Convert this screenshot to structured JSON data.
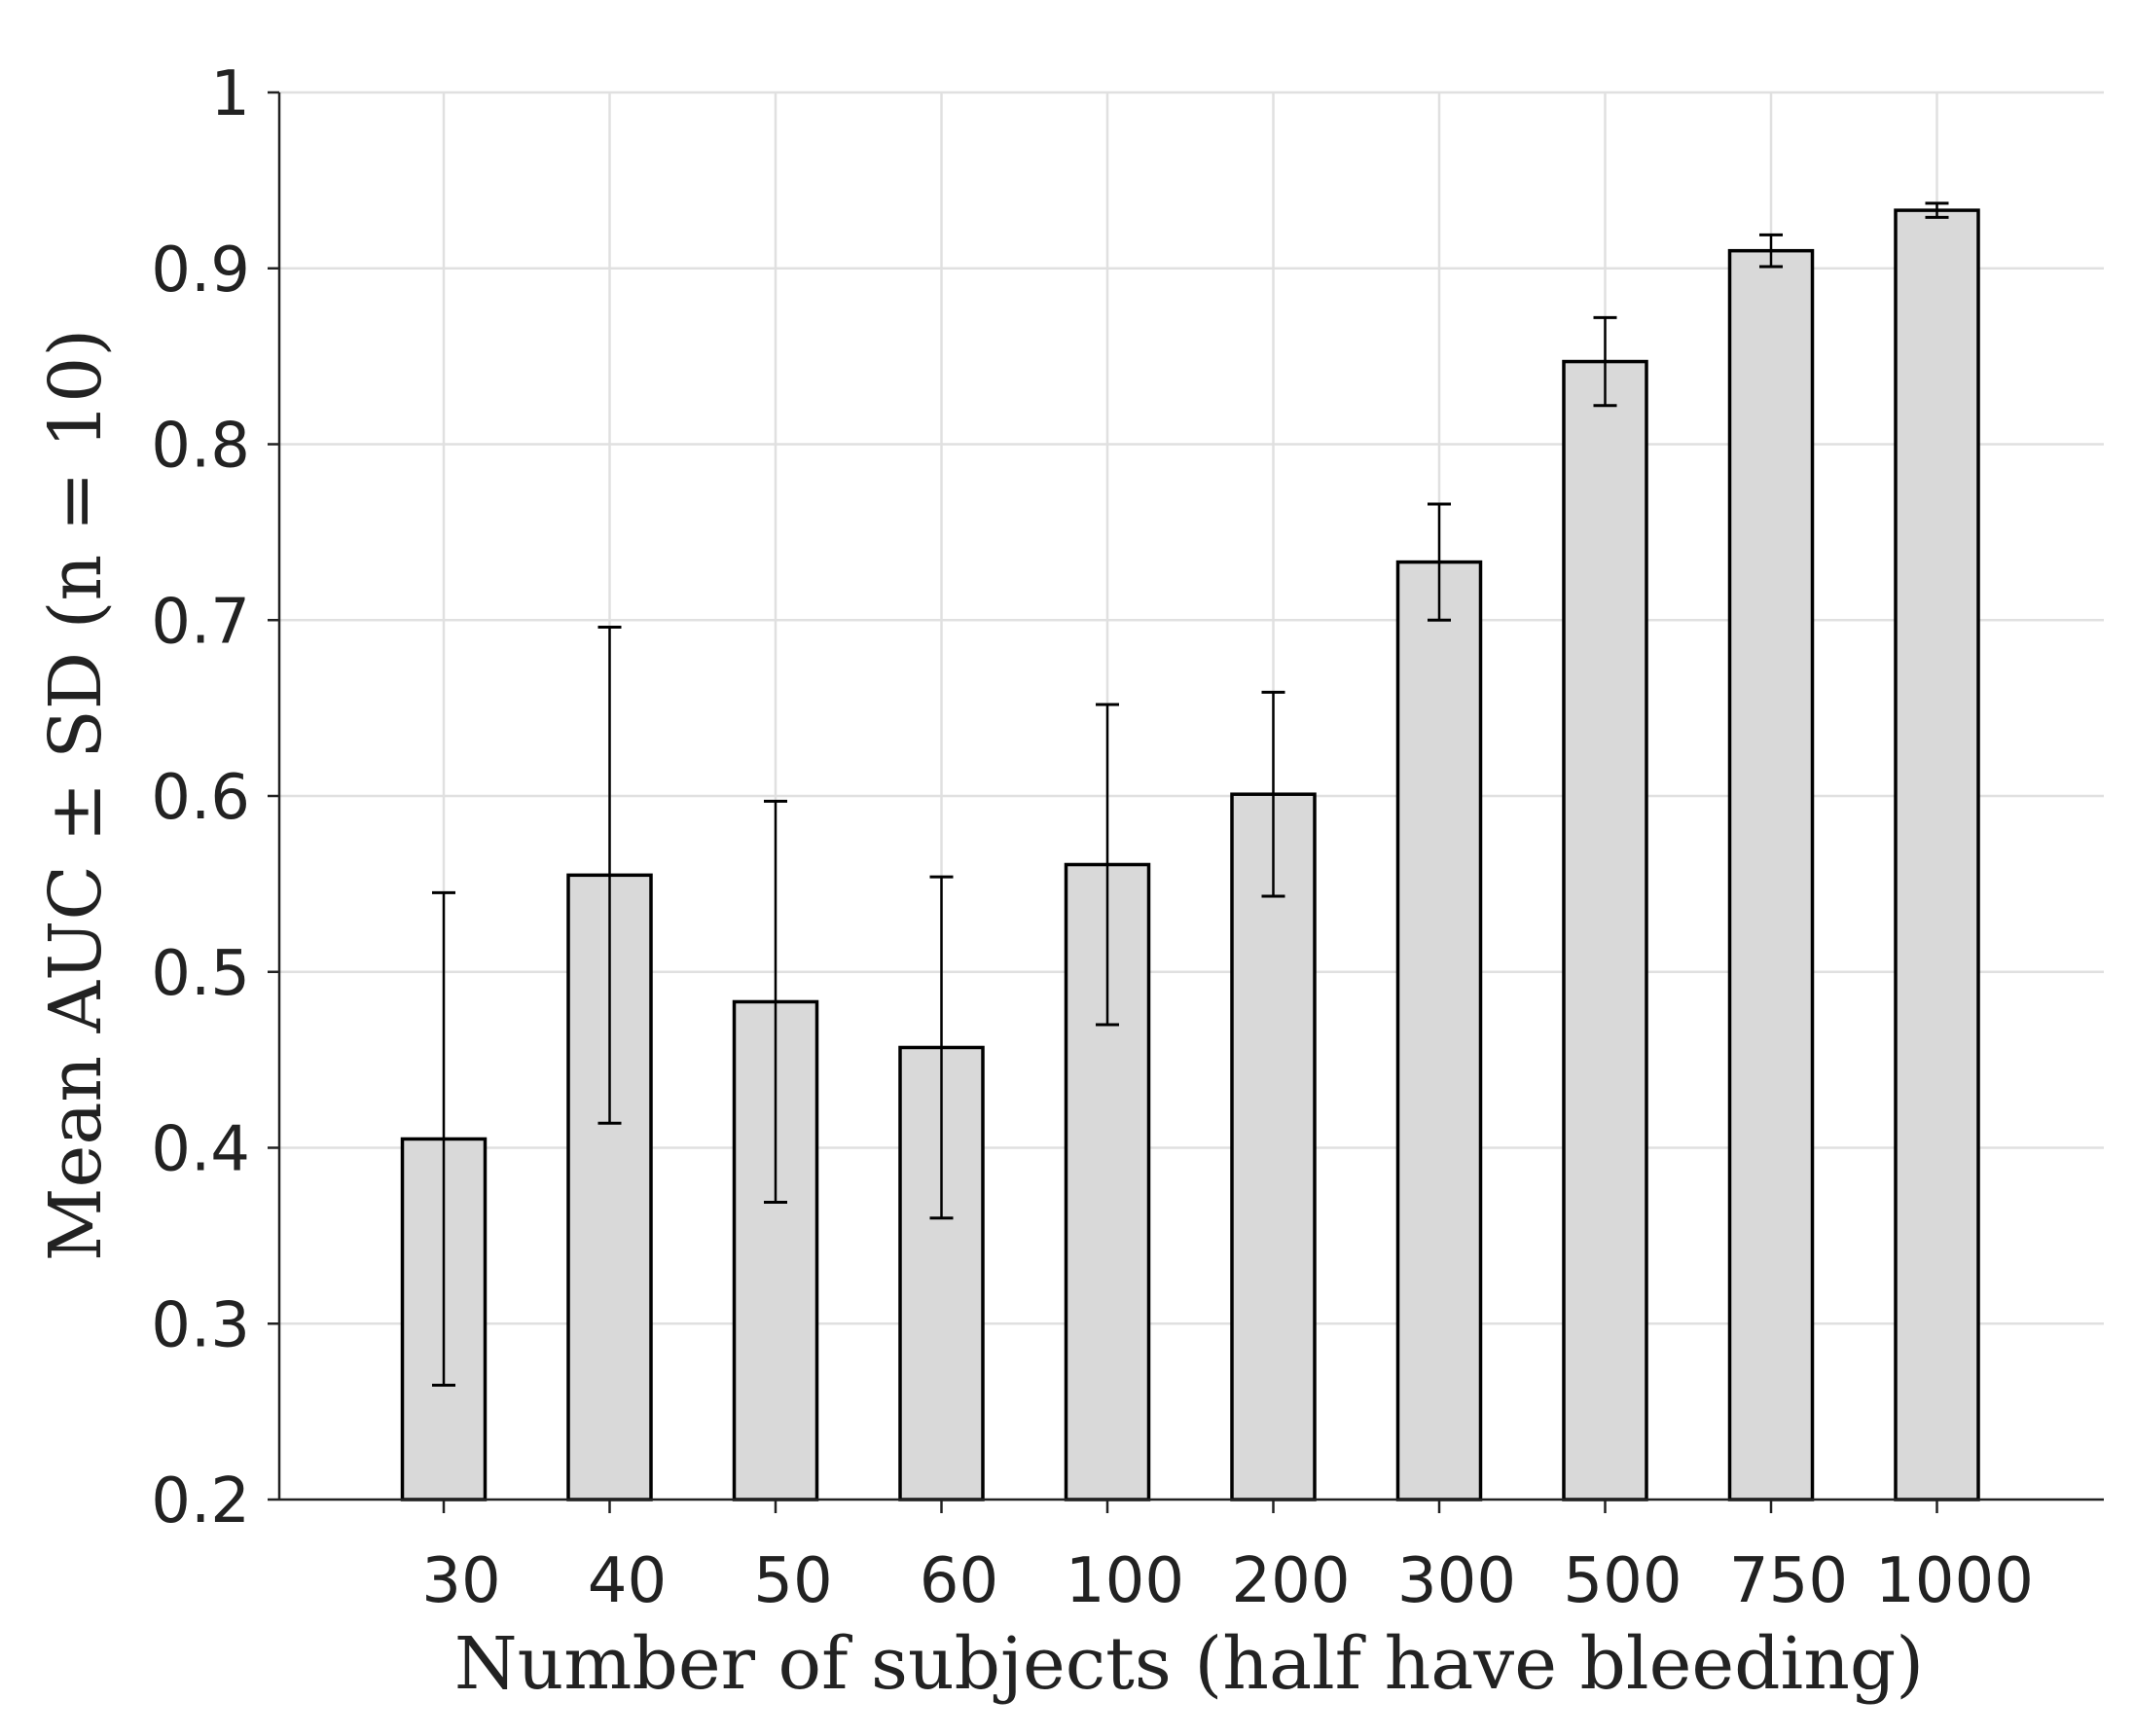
{
  "chart_data": {
    "type": "bar",
    "title": "",
    "xlabel": "Number of subjects (half have bleeding)",
    "ylabel": "Mean AUC ± SD (n = 10)",
    "categories": [
      "30",
      "40",
      "50",
      "60",
      "100",
      "200",
      "300",
      "500",
      "750",
      "1000"
    ],
    "values": [
      0.405,
      0.555,
      0.483,
      0.457,
      0.561,
      0.601,
      0.733,
      0.847,
      0.91,
      0.933
    ],
    "errors": [
      0.14,
      0.141,
      0.114,
      0.097,
      0.091,
      0.058,
      0.033,
      0.025,
      0.009,
      0.004
    ],
    "ylim": [
      0.2,
      1
    ],
    "yticks": [
      "0.2",
      "0.3",
      "0.4",
      "0.5",
      "0.6",
      "0.7",
      "0.8",
      "0.9",
      "1"
    ],
    "grid": true,
    "colors": {
      "bar_fill": "#d9d9d9",
      "bar_stroke": "#000000",
      "grid": "#e0e0e0",
      "axis": "#222222"
    }
  }
}
